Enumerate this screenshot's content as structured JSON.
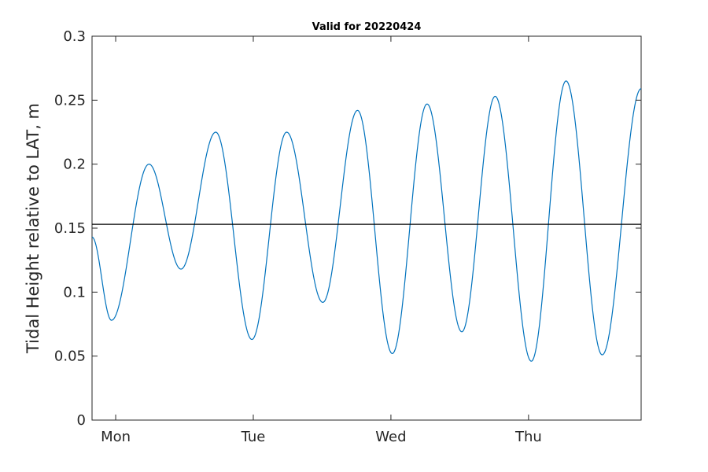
{
  "chart_data": {
    "type": "line",
    "title": "Valid for 20220424",
    "ylabel": "Tidal Height relative to LAT, m",
    "xlabel": "",
    "xlim": [
      0,
      3.95
    ],
    "ylim": [
      0,
      0.3
    ],
    "x_unit": "days",
    "yticks": [
      0,
      0.05,
      0.1,
      0.15,
      0.2,
      0.25,
      0.3
    ],
    "ytick_labels": [
      "0",
      "0.05",
      "0.1",
      "0.15",
      "0.2",
      "0.25",
      "0.3"
    ],
    "xticks": [
      0.17,
      1.16,
      2.15,
      3.14
    ],
    "xtick_labels": [
      "Mon",
      "Tue",
      "Wed",
      "Thu"
    ],
    "grid": false,
    "series": [
      {
        "color": "#0072BD",
        "extrema_x": [
          0,
          0.14,
          0.41,
          0.64,
          0.89,
          1.15,
          1.4,
          1.66,
          1.91,
          2.16,
          2.41,
          2.66,
          2.9,
          3.16,
          3.41,
          3.67,
          3.95
        ],
        "extrema_y": [
          0.143,
          0.078,
          0.2,
          0.118,
          0.225,
          0.063,
          0.225,
          0.092,
          0.242,
          0.052,
          0.247,
          0.069,
          0.253,
          0.046,
          0.265,
          0.051,
          0.259
        ]
      },
      {
        "color": "#000000",
        "x": [
          0,
          3.95
        ],
        "y": [
          0.153,
          0.153
        ]
      }
    ]
  }
}
